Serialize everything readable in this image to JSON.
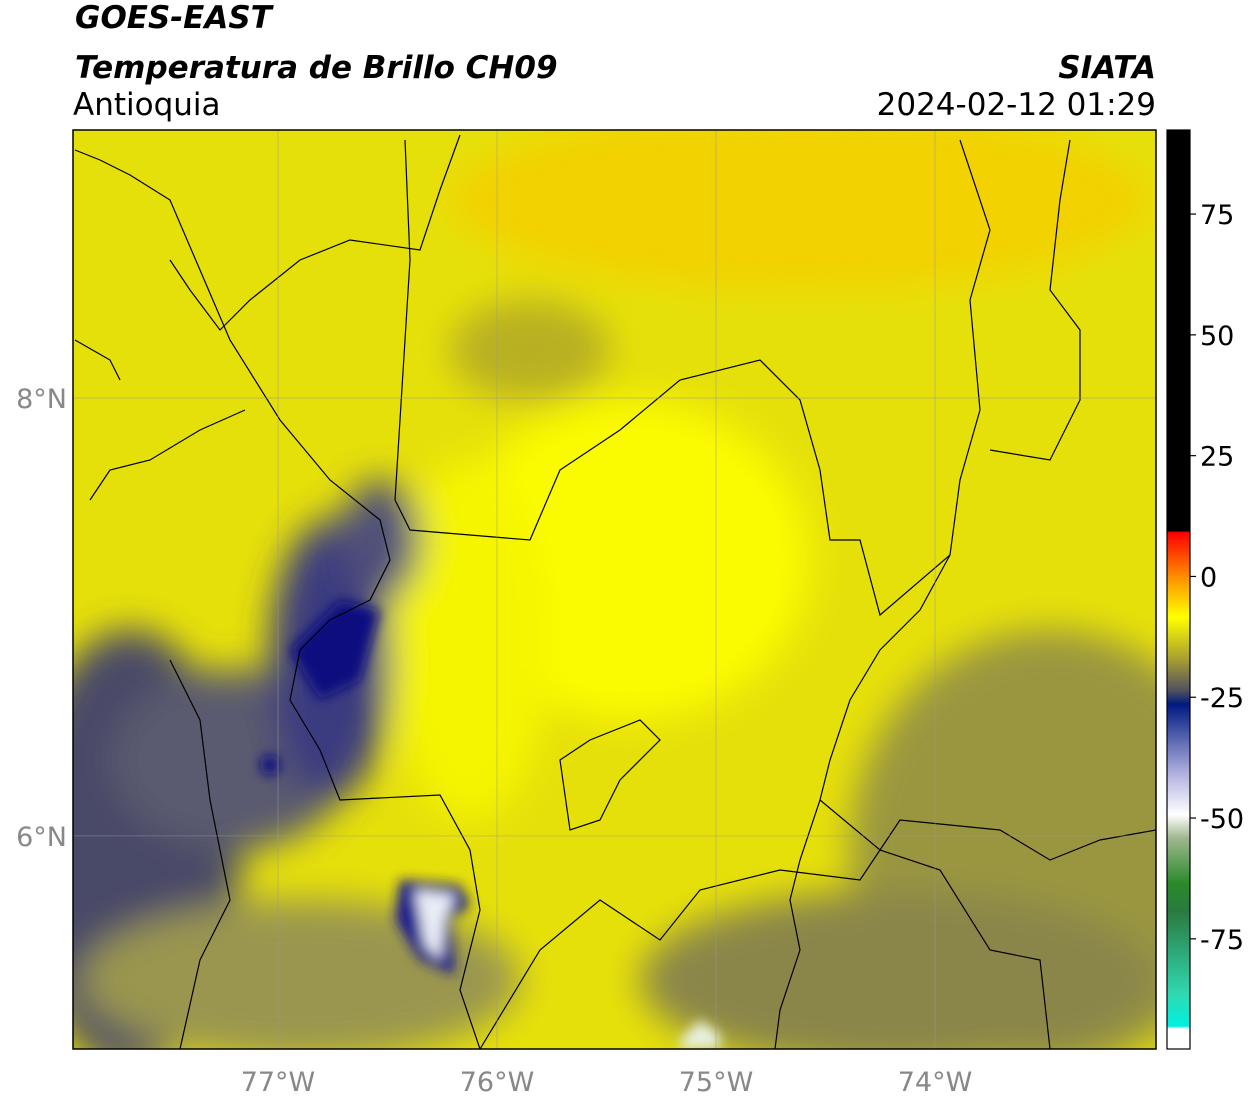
{
  "header": {
    "title": "GOES-EAST",
    "subtitle": "Temperatura de Brillo CH09",
    "region": "Antioquia",
    "source": "SIATA",
    "datetime": "2024-02-12 01:29"
  },
  "map": {
    "xlim": [
      -77.936,
      -72.991
    ],
    "ylim": [
      5.027,
      9.224
    ],
    "xticks": [
      {
        "value": -77,
        "label": "77°W"
      },
      {
        "value": -76,
        "label": "76°W"
      },
      {
        "value": -75,
        "label": "75°W"
      },
      {
        "value": -74,
        "label": "74°W"
      }
    ],
    "yticks": [
      {
        "value": 8,
        "label": "8°N"
      },
      {
        "value": 6,
        "label": "6°N"
      }
    ]
  },
  "colorbar": {
    "lim": [
      -97.8,
      92.4
    ],
    "ticks": [
      75,
      50,
      25,
      0,
      -25,
      -50,
      -75
    ]
  }
}
